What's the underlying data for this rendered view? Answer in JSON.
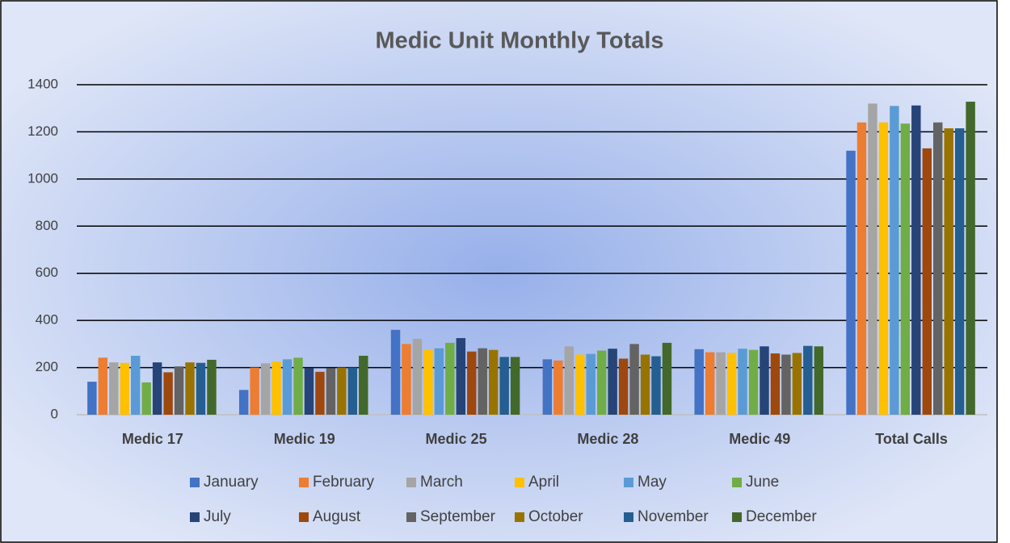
{
  "chart_data": {
    "type": "bar",
    "title": "Medic Unit Monthly Totals",
    "categories": [
      "Medic 17",
      "Medic 19",
      "Medic 25",
      "Medic 28",
      "Medic 49",
      "Total Calls"
    ],
    "series": [
      {
        "name": "January",
        "color": "#4472c4",
        "values": [
          140,
          105,
          360,
          235,
          278,
          1120
        ]
      },
      {
        "name": "February",
        "color": "#ed7d31",
        "values": [
          242,
          200,
          300,
          230,
          265,
          1240
        ]
      },
      {
        "name": "March",
        "color": "#a5a5a5",
        "values": [
          222,
          218,
          322,
          290,
          265,
          1320
        ]
      },
      {
        "name": "April",
        "color": "#ffc000",
        "values": [
          220,
          225,
          275,
          255,
          262,
          1240
        ]
      },
      {
        "name": "May",
        "color": "#5b9bd5",
        "values": [
          250,
          235,
          282,
          258,
          280,
          1310
        ]
      },
      {
        "name": "June",
        "color": "#70ad47",
        "values": [
          137,
          242,
          305,
          272,
          275,
          1235
        ]
      },
      {
        "name": "July",
        "color": "#264478",
        "values": [
          222,
          197,
          325,
          280,
          290,
          1312
        ]
      },
      {
        "name": "August",
        "color": "#9e480e",
        "values": [
          180,
          182,
          268,
          238,
          260,
          1130
        ]
      },
      {
        "name": "September",
        "color": "#636363",
        "values": [
          205,
          197,
          282,
          300,
          255,
          1240
        ]
      },
      {
        "name": "October",
        "color": "#997300",
        "values": [
          222,
          200,
          275,
          255,
          262,
          1215
        ]
      },
      {
        "name": "November",
        "color": "#255e91",
        "values": [
          220,
          200,
          245,
          248,
          292,
          1215
        ]
      },
      {
        "name": "December",
        "color": "#43682b",
        "values": [
          233,
          250,
          245,
          305,
          290,
          1328
        ]
      }
    ],
    "ylim": [
      0,
      1400
    ],
    "yticks": [
      0,
      200,
      400,
      600,
      800,
      1000,
      1200,
      1400
    ],
    "grid": true,
    "legend": "bottom"
  }
}
